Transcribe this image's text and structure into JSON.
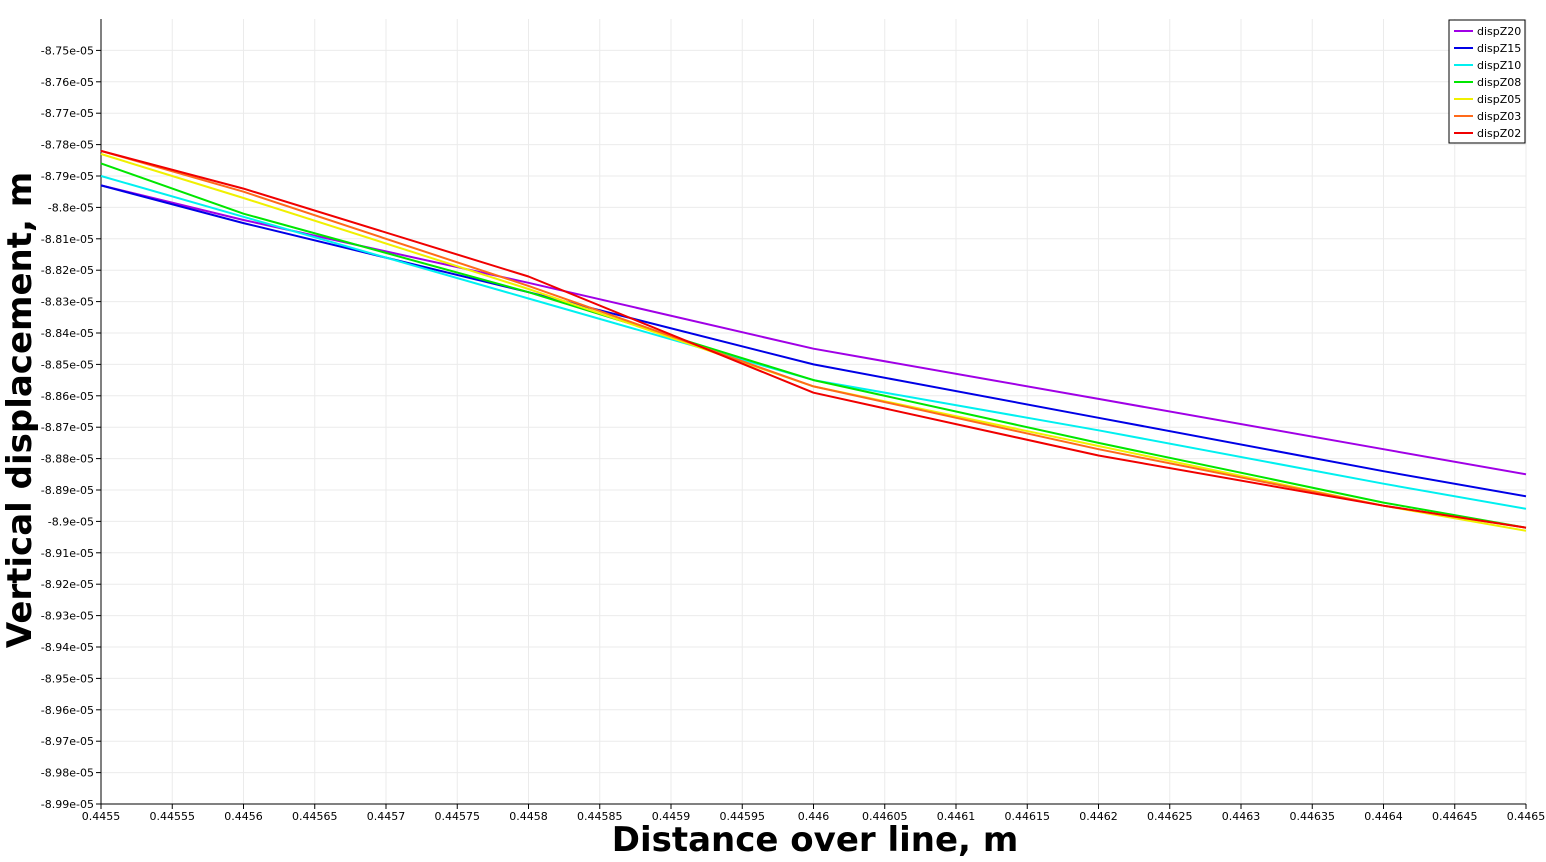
{
  "chart_data": {
    "type": "line",
    "xlabel": "Distance over line, m",
    "ylabel": "Vertical displacement, m",
    "xlim": [
      0.4455,
      0.4465
    ],
    "ylim": [
      -8.99e-05,
      -8.74e-05
    ],
    "grid": true,
    "legend_position": "top-right",
    "x_ticks": [
      "0.4455",
      "0.44555",
      "0.4456",
      "0.44565",
      "0.4457",
      "0.44575",
      "0.4458",
      "0.44585",
      "0.4459",
      "0.44595",
      "0.446",
      "0.44605",
      "0.4461",
      "0.44615",
      "0.4462",
      "0.44625",
      "0.4463",
      "0.44635",
      "0.4464",
      "0.44645",
      "0.4465"
    ],
    "x_tick_values": [
      0.4455,
      0.44555,
      0.4456,
      0.44565,
      0.4457,
      0.44575,
      0.4458,
      0.44585,
      0.4459,
      0.44595,
      0.446,
      0.44605,
      0.4461,
      0.44615,
      0.4462,
      0.44625,
      0.4463,
      0.44635,
      0.4464,
      0.44645,
      0.4465
    ],
    "y_ticks": [
      "-8.75e-05",
      "-8.76e-05",
      "-8.77e-05",
      "-8.78e-05",
      "-8.79e-05",
      "-8.8e-05",
      "-8.81e-05",
      "-8.82e-05",
      "-8.83e-05",
      "-8.84e-05",
      "-8.85e-05",
      "-8.86e-05",
      "-8.87e-05",
      "-8.88e-05",
      "-8.89e-05",
      "-8.9e-05",
      "-8.91e-05",
      "-8.92e-05",
      "-8.93e-05",
      "-8.94e-05",
      "-8.95e-05",
      "-8.96e-05",
      "-8.97e-05",
      "-8.98e-05",
      "-8.99e-05"
    ],
    "y_tick_values": [
      -8.75e-05,
      -8.76e-05,
      -8.77e-05,
      -8.78e-05,
      -8.79e-05,
      -8.8e-05,
      -8.81e-05,
      -8.82e-05,
      -8.83e-05,
      -8.84e-05,
      -8.85e-05,
      -8.86e-05,
      -8.87e-05,
      -8.88e-05,
      -8.89e-05,
      -8.9e-05,
      -8.91e-05,
      -8.92e-05,
      -8.93e-05,
      -8.94e-05,
      -8.95e-05,
      -8.96e-05,
      -8.97e-05,
      -8.98e-05,
      -8.99e-05
    ],
    "series": [
      {
        "name": "dispZ20",
        "color": "#a000e6",
        "x": [
          0.4455,
          0.4456,
          0.4458,
          0.446,
          0.4462,
          0.4464,
          0.4465
        ],
        "y": [
          -8.793e-05,
          -8.804e-05,
          -8.824e-05,
          -8.845e-05,
          -8.861e-05,
          -8.877e-05,
          -8.885e-05
        ]
      },
      {
        "name": "dispZ15",
        "color": "#0000e6",
        "x": [
          0.4455,
          0.4456,
          0.4458,
          0.446,
          0.4462,
          0.4464,
          0.4465
        ],
        "y": [
          -8.793e-05,
          -8.805e-05,
          -8.827e-05,
          -8.85e-05,
          -8.867e-05,
          -8.884e-05,
          -8.892e-05
        ]
      },
      {
        "name": "dispZ10",
        "color": "#00f0f0",
        "x": [
          0.4455,
          0.4456,
          0.4458,
          0.446,
          0.4462,
          0.4464,
          0.4465
        ],
        "y": [
          -8.79e-05,
          -8.803e-05,
          -8.829e-05,
          -8.855e-05,
          -8.871e-05,
          -8.888e-05,
          -8.896e-05
        ]
      },
      {
        "name": "dispZ08",
        "color": "#00e600",
        "x": [
          0.4455,
          0.4456,
          0.4458,
          0.446,
          0.4462,
          0.4464,
          0.4465
        ],
        "y": [
          -8.786e-05,
          -8.802e-05,
          -8.827e-05,
          -8.855e-05,
          -8.875e-05,
          -8.894e-05,
          -8.902e-05
        ]
      },
      {
        "name": "dispZ05",
        "color": "#f0f000",
        "x": [
          0.4455,
          0.4456,
          0.4458,
          0.446,
          0.4462,
          0.4464,
          0.4465
        ],
        "y": [
          -8.783e-05,
          -8.797e-05,
          -8.826e-05,
          -8.857e-05,
          -8.876e-05,
          -8.895e-05,
          -8.903e-05
        ]
      },
      {
        "name": "dispZ03",
        "color": "#ff6a1a",
        "x": [
          0.4455,
          0.4456,
          0.4458,
          0.446,
          0.4462,
          0.4464,
          0.4465
        ],
        "y": [
          -8.782e-05,
          -8.795e-05,
          -8.825e-05,
          -8.857e-05,
          -8.877e-05,
          -8.895e-05,
          -8.902e-05
        ]
      },
      {
        "name": "dispZ02",
        "color": "#f00000",
        "x": [
          0.4455,
          0.4456,
          0.4458,
          0.446,
          0.4462,
          0.4464,
          0.4465
        ],
        "y": [
          -8.782e-05,
          -8.794e-05,
          -8.822e-05,
          -8.859e-05,
          -8.879e-05,
          -8.895e-05,
          -8.902e-05
        ]
      }
    ]
  }
}
